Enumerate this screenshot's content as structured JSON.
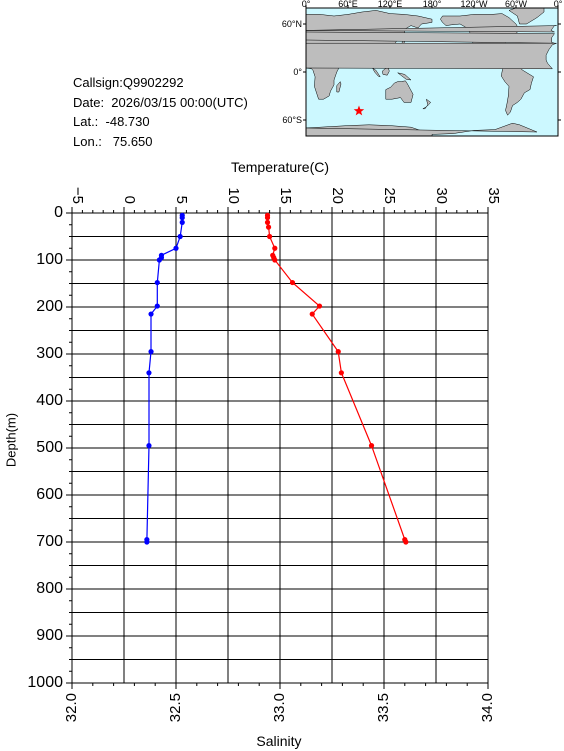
{
  "info": {
    "callsign": "Callsign:Q9902292",
    "date": "Date:  2026/03/15 00:00(UTC)",
    "lat": "Lat.:  -48.730",
    "lon": "Lon.:   75.650"
  },
  "map": {
    "lon_labels": [
      "0°",
      "60°E",
      "120°E",
      "180°",
      "120°W",
      "60°W",
      "0°"
    ],
    "lat_labels": [
      "60°N",
      "0°",
      "60°S"
    ],
    "ocean_color": "#ccf8ff",
    "land_color": "#bdbdbd",
    "marker": {
      "symbol": "star",
      "color": "#ff0000",
      "lat": -48.73,
      "lon": 75.65
    }
  },
  "chart_data": {
    "type": "line",
    "ylabel": "Depth(m)",
    "ylim": [
      0,
      1000
    ],
    "y_ticks": [
      "0",
      "100",
      "200",
      "300",
      "400",
      "500",
      "600",
      "700",
      "800",
      "900",
      "1000"
    ],
    "top_axis": {
      "label": "Temperature(C)",
      "range": [
        -5,
        35
      ],
      "ticks": [
        "−5",
        "0",
        "5",
        "10",
        "15",
        "20",
        "25",
        "30",
        "35"
      ]
    },
    "bottom_axis": {
      "label": "Salinity",
      "range": [
        32.0,
        34.0
      ],
      "ticks": [
        "32.0",
        "32.5",
        "33.0",
        "33.5",
        "34.0"
      ]
    },
    "grid": true,
    "series": [
      {
        "axis": "temperature",
        "color": "#ff0000",
        "points": [
          {
            "depth": 5,
            "value": 13.8
          },
          {
            "depth": 10,
            "value": 13.8
          },
          {
            "depth": 20,
            "value": 13.8
          },
          {
            "depth": 30,
            "value": 13.9
          },
          {
            "depth": 50,
            "value": 14.0
          },
          {
            "depth": 75,
            "value": 14.5
          },
          {
            "depth": 90,
            "value": 14.3
          },
          {
            "depth": 95,
            "value": 14.4
          },
          {
            "depth": 100,
            "value": 14.5
          },
          {
            "depth": 148,
            "value": 16.2
          },
          {
            "depth": 198,
            "value": 18.8
          },
          {
            "depth": 215,
            "value": 18.1
          },
          {
            "depth": 295,
            "value": 20.6
          },
          {
            "depth": 340,
            "value": 20.9
          },
          {
            "depth": 495,
            "value": 23.8
          },
          {
            "depth": 695,
            "value": 27.0
          },
          {
            "depth": 700,
            "value": 27.1
          }
        ]
      },
      {
        "axis": "salinity",
        "color": "#0000ff",
        "points": [
          {
            "depth": 5,
            "value": 32.53
          },
          {
            "depth": 10,
            "value": 32.53
          },
          {
            "depth": 20,
            "value": 32.53
          },
          {
            "depth": 50,
            "value": 32.52
          },
          {
            "depth": 75,
            "value": 32.5
          },
          {
            "depth": 90,
            "value": 32.43
          },
          {
            "depth": 95,
            "value": 32.43
          },
          {
            "depth": 100,
            "value": 32.42
          },
          {
            "depth": 148,
            "value": 32.41
          },
          {
            "depth": 198,
            "value": 32.41
          },
          {
            "depth": 215,
            "value": 32.38
          },
          {
            "depth": 295,
            "value": 32.38
          },
          {
            "depth": 340,
            "value": 32.37
          },
          {
            "depth": 495,
            "value": 32.37
          },
          {
            "depth": 695,
            "value": 32.36
          },
          {
            "depth": 700,
            "value": 32.36
          }
        ]
      }
    ]
  }
}
